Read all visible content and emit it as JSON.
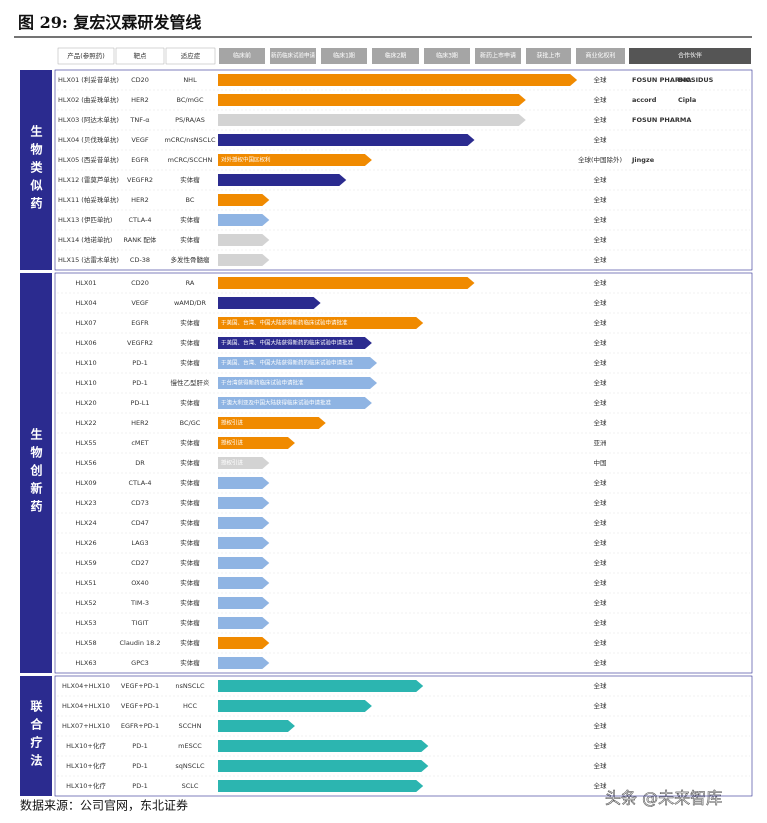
{
  "header": {
    "title": "图 29: 复宏汉霖研发管线"
  },
  "columns": [
    "产品(参照药)",
    "靶点",
    "适应症",
    "临床前",
    "新药临床试验申请",
    "临床1期",
    "临床2期",
    "临床3期",
    "新药上市申请",
    "获批上市",
    "商业化权利",
    "合作伙伴"
  ],
  "sections": [
    {
      "label": "生物类似药",
      "rows": [
        {
          "product": "HLX01 (利妥昔单抗)",
          "target": "CD20",
          "indication": "NHL",
          "progress": 7,
          "color": "#f08a00",
          "rights": "全球",
          "partners": [
            "FOSUN PHARMA",
            "BIOSIDUS"
          ]
        },
        {
          "product": "HLX02 (曲妥珠单抗)",
          "target": "HER2",
          "indication": "BC/mGC",
          "progress": 6,
          "color": "#f08a00",
          "rights": "全球",
          "partners": [
            "accord",
            "Cipla"
          ]
        },
        {
          "product": "HLX03 (阿达木单抗)",
          "target": "TNF-α",
          "indication": "PS/RA/AS",
          "progress": 6,
          "color": "#d3d3d3",
          "rights": "全球",
          "partners": [
            "FOSUN PHARMA"
          ]
        },
        {
          "product": "HLX04 (贝伐珠单抗)",
          "target": "VEGF",
          "indication": "mCRC/nsNSCLC",
          "progress": 5,
          "color": "#2b2b8f",
          "rights": "全球"
        },
        {
          "product": "HLX05 (西妥昔单抗)",
          "target": "EGFR",
          "indication": "mCRC/SCCHN",
          "progress": 3,
          "color": "#f08a00",
          "note": "对外授权中国区权利",
          "rights": "全球(中国除外)",
          "partners": [
            "Jingze"
          ]
        },
        {
          "product": "HLX12 (雷莫芦单抗)",
          "target": "VEGFR2",
          "indication": "实体瘤",
          "progress": 2.5,
          "color": "#2b2b8f",
          "rights": "全球"
        },
        {
          "product": "HLX11 (帕妥珠单抗)",
          "target": "HER2",
          "indication": "BC",
          "progress": 1,
          "color": "#f08a00",
          "rights": "全球"
        },
        {
          "product": "HLX13 (伊匹单抗)",
          "target": "CTLA-4",
          "indication": "实体瘤",
          "progress": 1,
          "color": "#8fb4e3",
          "rights": "全球"
        },
        {
          "product": "HLX14 (地诺单抗)",
          "target": "RANK 配体",
          "indication": "实体瘤",
          "progress": 1,
          "color": "#d3d3d3",
          "rights": "全球"
        },
        {
          "product": "HLX15 (达雷木单抗)",
          "target": "CD-38",
          "indication": "多发性骨髓瘤",
          "progress": 1,
          "color": "#d3d3d3",
          "rights": "全球"
        }
      ]
    },
    {
      "label": "生物创新药",
      "rows": [
        {
          "product": "HLX01",
          "target": "CD20",
          "indication": "RA",
          "progress": 5,
          "color": "#f08a00",
          "rights": "全球"
        },
        {
          "product": "HLX04",
          "target": "VEGF",
          "indication": "wAMD/DR",
          "progress": 2,
          "color": "#2b2b8f",
          "rights": "全球"
        },
        {
          "product": "HLX07",
          "target": "EGFR",
          "indication": "实体瘤",
          "progress": 4,
          "color": "#f08a00",
          "note": "于美国、台湾、中国大陆获得新药临床试验申请批准",
          "rights": "全球"
        },
        {
          "product": "HLX06",
          "target": "VEGFR2",
          "indication": "实体瘤",
          "progress": 3,
          "color": "#2b2b8f",
          "note": "于美国、台湾、中国大陆获得新药的临床试验申请批准",
          "rights": "全球"
        },
        {
          "product": "HLX10",
          "target": "PD-1",
          "indication": "实体瘤",
          "progress": 3.1,
          "color": "#8fb4e3",
          "note": "于美国、台湾、中国大陆获得新药的临床试验申请批准",
          "rights": "全球"
        },
        {
          "product": "HLX10",
          "target": "PD-1",
          "indication": "慢性乙型肝炎",
          "progress": 3.1,
          "color": "#8fb4e3",
          "note": "于台湾获得新药临床试验申请批准",
          "rights": "全球"
        },
        {
          "product": "HLX20",
          "target": "PD-L1",
          "indication": "实体瘤",
          "progress": 3,
          "color": "#8fb4e3",
          "note": "于澳大利亚及中国大陆获得临床试验申请批准",
          "rights": "全球"
        },
        {
          "product": "HLX22",
          "target": "HER2",
          "indication": "BC/GC",
          "progress": 2.1,
          "color": "#f08a00",
          "note": "授权引进",
          "rights": "全球"
        },
        {
          "product": "HLX55",
          "target": "cMET",
          "indication": "实体瘤",
          "progress": 1.5,
          "color": "#f08a00",
          "note": "授权引进",
          "rights": "亚洲"
        },
        {
          "product": "HLX56",
          "target": "DR",
          "indication": "实体瘤",
          "progress": 1,
          "color": "#d3d3d3",
          "note": "授权引进",
          "rights": "中国"
        },
        {
          "product": "HLX09",
          "target": "CTLA-4",
          "indication": "实体瘤",
          "progress": 1,
          "color": "#8fb4e3",
          "rights": "全球"
        },
        {
          "product": "HLX23",
          "target": "CD73",
          "indication": "实体瘤",
          "progress": 1,
          "color": "#8fb4e3",
          "rights": "全球"
        },
        {
          "product": "HLX24",
          "target": "CD47",
          "indication": "实体瘤",
          "progress": 1,
          "color": "#8fb4e3",
          "rights": "全球"
        },
        {
          "product": "HLX26",
          "target": "LAG3",
          "indication": "实体瘤",
          "progress": 1,
          "color": "#8fb4e3",
          "rights": "全球"
        },
        {
          "product": "HLX59",
          "target": "CD27",
          "indication": "实体瘤",
          "progress": 1,
          "color": "#8fb4e3",
          "rights": "全球"
        },
        {
          "product": "HLX51",
          "target": "OX40",
          "indication": "实体瘤",
          "progress": 1,
          "color": "#8fb4e3",
          "rights": "全球"
        },
        {
          "product": "HLX52",
          "target": "TIM-3",
          "indication": "实体瘤",
          "progress": 1,
          "color": "#8fb4e3",
          "rights": "全球"
        },
        {
          "product": "HLX53",
          "target": "TIGIT",
          "indication": "实体瘤",
          "progress": 1,
          "color": "#8fb4e3",
          "rights": "全球"
        },
        {
          "product": "HLX58",
          "target": "Claudin 18.2",
          "indication": "实体瘤",
          "progress": 1,
          "color": "#f08a00",
          "rights": "全球"
        },
        {
          "product": "HLX63",
          "target": "GPC3",
          "indication": "实体瘤",
          "progress": 1,
          "color": "#8fb4e3",
          "rights": "全球"
        }
      ]
    },
    {
      "label": "联合疗法",
      "rows": [
        {
          "product": "HLX04+HLX10",
          "target": "VEGF+PD-1",
          "indication": "nsNSCLC",
          "progress": 4,
          "color": "#2cb5b0",
          "rights": "全球"
        },
        {
          "product": "HLX04+HLX10",
          "target": "VEGF+PD-1",
          "indication": "HCC",
          "progress": 3,
          "color": "#2cb5b0",
          "rights": "全球"
        },
        {
          "product": "HLX07+HLX10",
          "target": "EGFR+PD-1",
          "indication": "SCCHN",
          "progress": 1.5,
          "color": "#2cb5b0",
          "rights": "全球"
        },
        {
          "product": "HLX10+化疗",
          "target": "PD-1",
          "indication": "mESCC",
          "progress": 4.1,
          "color": "#2cb5b0",
          "rights": "全球"
        },
        {
          "product": "HLX10+化疗",
          "target": "PD-1",
          "indication": "sqNSCLC",
          "progress": 4.1,
          "color": "#2cb5b0",
          "rights": "全球"
        },
        {
          "product": "HLX10+化疗",
          "target": "PD-1",
          "indication": "SCLC",
          "progress": 4,
          "color": "#2cb5b0",
          "rights": "全球"
        }
      ]
    }
  ],
  "source": "数据来源：公司官网，东北证券",
  "watermark": "头条 @未来智库"
}
